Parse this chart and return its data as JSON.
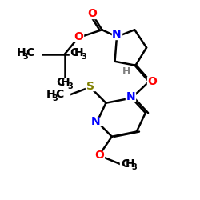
{
  "bg_color": "#ffffff",
  "atom_colors": {
    "N": "#0000ff",
    "O": "#ff0000",
    "S": "#808000",
    "C": "#000000",
    "H": "#808080"
  },
  "bond_color": "#000000",
  "bond_width": 1.8,
  "font_size_main": 10,
  "font_size_sub": 7
}
